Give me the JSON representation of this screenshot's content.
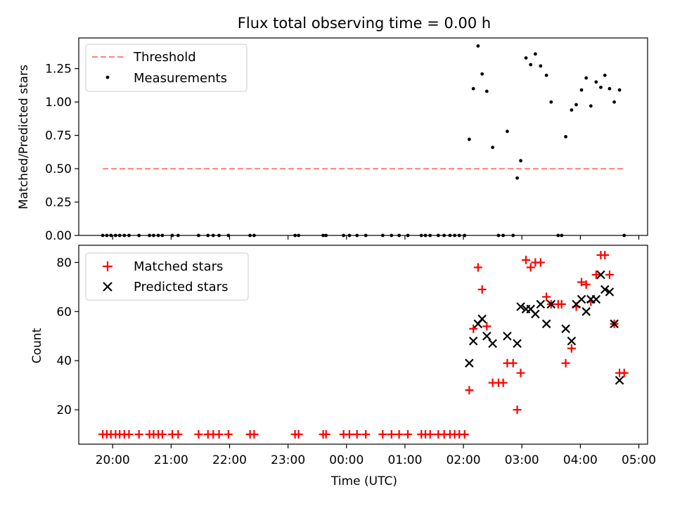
{
  "figure_title": "Flux total observing time = 0.00 h",
  "xlabel": "Time (UTC)",
  "x_ticks": [
    "20:00",
    "21:00",
    "22:00",
    "23:00",
    "00:00",
    "01:00",
    "02:00",
    "03:00",
    "04:00",
    "05:00"
  ],
  "colors": {
    "threshold": "#ff8080",
    "measurements": "#000000",
    "matched": "#ff0000",
    "predicted": "#000000"
  },
  "chart_data": [
    {
      "type": "scatter",
      "title": "Flux total observing time = 0.00 h",
      "xlabel": "",
      "ylabel": "Matched/Predicted stars",
      "x_unit": "hours",
      "xlim": [
        19.42,
        29.15
      ],
      "ylim": [
        0,
        1.48
      ],
      "y_ticks": [
        0.0,
        0.25,
        0.5,
        0.75,
        1.0,
        1.25
      ],
      "legend": {
        "placement": "top-left",
        "entries": [
          "Threshold",
          "Measurements"
        ]
      },
      "threshold": {
        "name": "Threshold",
        "value": 0.5,
        "x_range": [
          19.83,
          28.77
        ]
      },
      "series": [
        {
          "name": "Measurements",
          "points": [
            [
              19.83,
              0
            ],
            [
              19.9,
              0
            ],
            [
              19.97,
              0
            ],
            [
              20.05,
              0
            ],
            [
              20.12,
              0
            ],
            [
              20.2,
              0
            ],
            [
              20.28,
              0
            ],
            [
              20.45,
              0
            ],
            [
              20.63,
              0
            ],
            [
              20.7,
              0
            ],
            [
              20.78,
              0
            ],
            [
              20.85,
              0
            ],
            [
              21.02,
              0
            ],
            [
              21.12,
              0
            ],
            [
              21.47,
              0
            ],
            [
              21.63,
              0
            ],
            [
              21.72,
              0
            ],
            [
              21.82,
              0
            ],
            [
              21.98,
              0
            ],
            [
              22.35,
              0
            ],
            [
              22.42,
              0
            ],
            [
              23.12,
              0
            ],
            [
              23.18,
              0
            ],
            [
              23.6,
              0
            ],
            [
              23.65,
              0
            ],
            [
              23.95,
              0
            ],
            [
              24.05,
              0
            ],
            [
              24.18,
              0
            ],
            [
              24.33,
              0
            ],
            [
              24.62,
              0
            ],
            [
              24.77,
              0
            ],
            [
              24.9,
              0
            ],
            [
              25.05,
              0
            ],
            [
              25.28,
              0
            ],
            [
              25.35,
              0
            ],
            [
              25.43,
              0
            ],
            [
              25.57,
              0
            ],
            [
              25.67,
              0
            ],
            [
              25.77,
              0
            ],
            [
              25.85,
              0
            ],
            [
              25.93,
              0
            ],
            [
              26.02,
              0
            ],
            [
              26.1,
              0.72
            ],
            [
              26.17,
              1.1
            ],
            [
              26.25,
              1.42
            ],
            [
              26.32,
              1.21
            ],
            [
              26.4,
              1.08
            ],
            [
              26.5,
              0.66
            ],
            [
              26.6,
              0
            ],
            [
              26.68,
              0
            ],
            [
              26.75,
              0.78
            ],
            [
              26.85,
              0
            ],
            [
              26.92,
              0.43
            ],
            [
              26.98,
              0.56
            ],
            [
              27.07,
              1.33
            ],
            [
              27.15,
              1.28
            ],
            [
              27.23,
              1.36
            ],
            [
              27.32,
              1.27
            ],
            [
              27.42,
              1.2
            ],
            [
              27.5,
              1.0
            ],
            [
              27.62,
              0
            ],
            [
              27.68,
              0
            ],
            [
              27.75,
              0.74
            ],
            [
              27.85,
              0.94
            ],
            [
              27.93,
              0.98
            ],
            [
              28.02,
              1.09
            ],
            [
              28.1,
              1.18
            ],
            [
              28.18,
              0.97
            ],
            [
              28.27,
              1.15
            ],
            [
              28.35,
              1.11
            ],
            [
              28.42,
              1.2
            ],
            [
              28.5,
              1.1
            ],
            [
              28.58,
              1.0
            ],
            [
              28.67,
              1.09
            ],
            [
              28.75,
              0
            ]
          ]
        }
      ]
    },
    {
      "type": "scatter",
      "title": "",
      "xlabel": "Time (UTC)",
      "ylabel": "Count",
      "x_unit": "hours",
      "xlim": [
        19.42,
        29.15
      ],
      "ylim": [
        6,
        87
      ],
      "y_ticks": [
        20,
        40,
        60,
        80
      ],
      "legend": {
        "placement": "top-left",
        "entries": [
          "Matched stars",
          "Predicted stars"
        ]
      },
      "series": [
        {
          "name": "Matched stars",
          "points": [
            [
              19.83,
              10
            ],
            [
              19.9,
              10
            ],
            [
              19.97,
              10
            ],
            [
              20.05,
              10
            ],
            [
              20.12,
              10
            ],
            [
              20.2,
              10
            ],
            [
              20.28,
              10
            ],
            [
              20.45,
              10
            ],
            [
              20.63,
              10
            ],
            [
              20.7,
              10
            ],
            [
              20.78,
              10
            ],
            [
              20.85,
              10
            ],
            [
              21.02,
              10
            ],
            [
              21.12,
              10
            ],
            [
              21.47,
              10
            ],
            [
              21.63,
              10
            ],
            [
              21.72,
              10
            ],
            [
              21.82,
              10
            ],
            [
              21.98,
              10
            ],
            [
              22.35,
              10
            ],
            [
              22.42,
              10
            ],
            [
              23.12,
              10
            ],
            [
              23.18,
              10
            ],
            [
              23.6,
              10
            ],
            [
              23.65,
              10
            ],
            [
              23.95,
              10
            ],
            [
              24.05,
              10
            ],
            [
              24.18,
              10
            ],
            [
              24.33,
              10
            ],
            [
              24.62,
              10
            ],
            [
              24.77,
              10
            ],
            [
              24.9,
              10
            ],
            [
              25.05,
              10
            ],
            [
              25.28,
              10
            ],
            [
              25.35,
              10
            ],
            [
              25.43,
              10
            ],
            [
              25.57,
              10
            ],
            [
              25.67,
              10
            ],
            [
              25.77,
              10
            ],
            [
              25.85,
              10
            ],
            [
              25.93,
              10
            ],
            [
              26.02,
              10
            ],
            [
              26.1,
              28
            ],
            [
              26.17,
              53
            ],
            [
              26.25,
              78
            ],
            [
              26.32,
              69
            ],
            [
              26.4,
              54
            ],
            [
              26.5,
              31
            ],
            [
              26.6,
              31
            ],
            [
              26.68,
              31
            ],
            [
              26.75,
              39
            ],
            [
              26.85,
              39
            ],
            [
              26.92,
              20
            ],
            [
              26.98,
              35
            ],
            [
              27.07,
              81
            ],
            [
              27.15,
              78
            ],
            [
              27.23,
              80
            ],
            [
              27.32,
              80
            ],
            [
              27.42,
              66
            ],
            [
              27.5,
              63
            ],
            [
              27.62,
              63
            ],
            [
              27.68,
              63
            ],
            [
              27.75,
              39
            ],
            [
              27.85,
              45
            ],
            [
              27.93,
              62
            ],
            [
              28.02,
              72
            ],
            [
              28.1,
              71
            ],
            [
              28.18,
              64
            ],
            [
              28.27,
              75
            ],
            [
              28.35,
              83
            ],
            [
              28.42,
              83
            ],
            [
              28.5,
              75
            ],
            [
              28.58,
              55
            ],
            [
              28.67,
              35
            ],
            [
              28.75,
              35
            ]
          ]
        },
        {
          "name": "Predicted stars",
          "points": [
            [
              26.1,
              39
            ],
            [
              26.17,
              48
            ],
            [
              26.25,
              55
            ],
            [
              26.32,
              57
            ],
            [
              26.4,
              50
            ],
            [
              26.5,
              47
            ],
            [
              26.75,
              50
            ],
            [
              26.92,
              47
            ],
            [
              26.98,
              62
            ],
            [
              27.07,
              61
            ],
            [
              27.15,
              61
            ],
            [
              27.23,
              59
            ],
            [
              27.32,
              63
            ],
            [
              27.42,
              55
            ],
            [
              27.5,
              63
            ],
            [
              27.75,
              53
            ],
            [
              27.85,
              48
            ],
            [
              27.93,
              63
            ],
            [
              28.02,
              65
            ],
            [
              28.1,
              60
            ],
            [
              28.18,
              65
            ],
            [
              28.27,
              65
            ],
            [
              28.35,
              75
            ],
            [
              28.42,
              69
            ],
            [
              28.5,
              68
            ],
            [
              28.58,
              55
            ],
            [
              28.67,
              32
            ]
          ]
        }
      ]
    }
  ]
}
